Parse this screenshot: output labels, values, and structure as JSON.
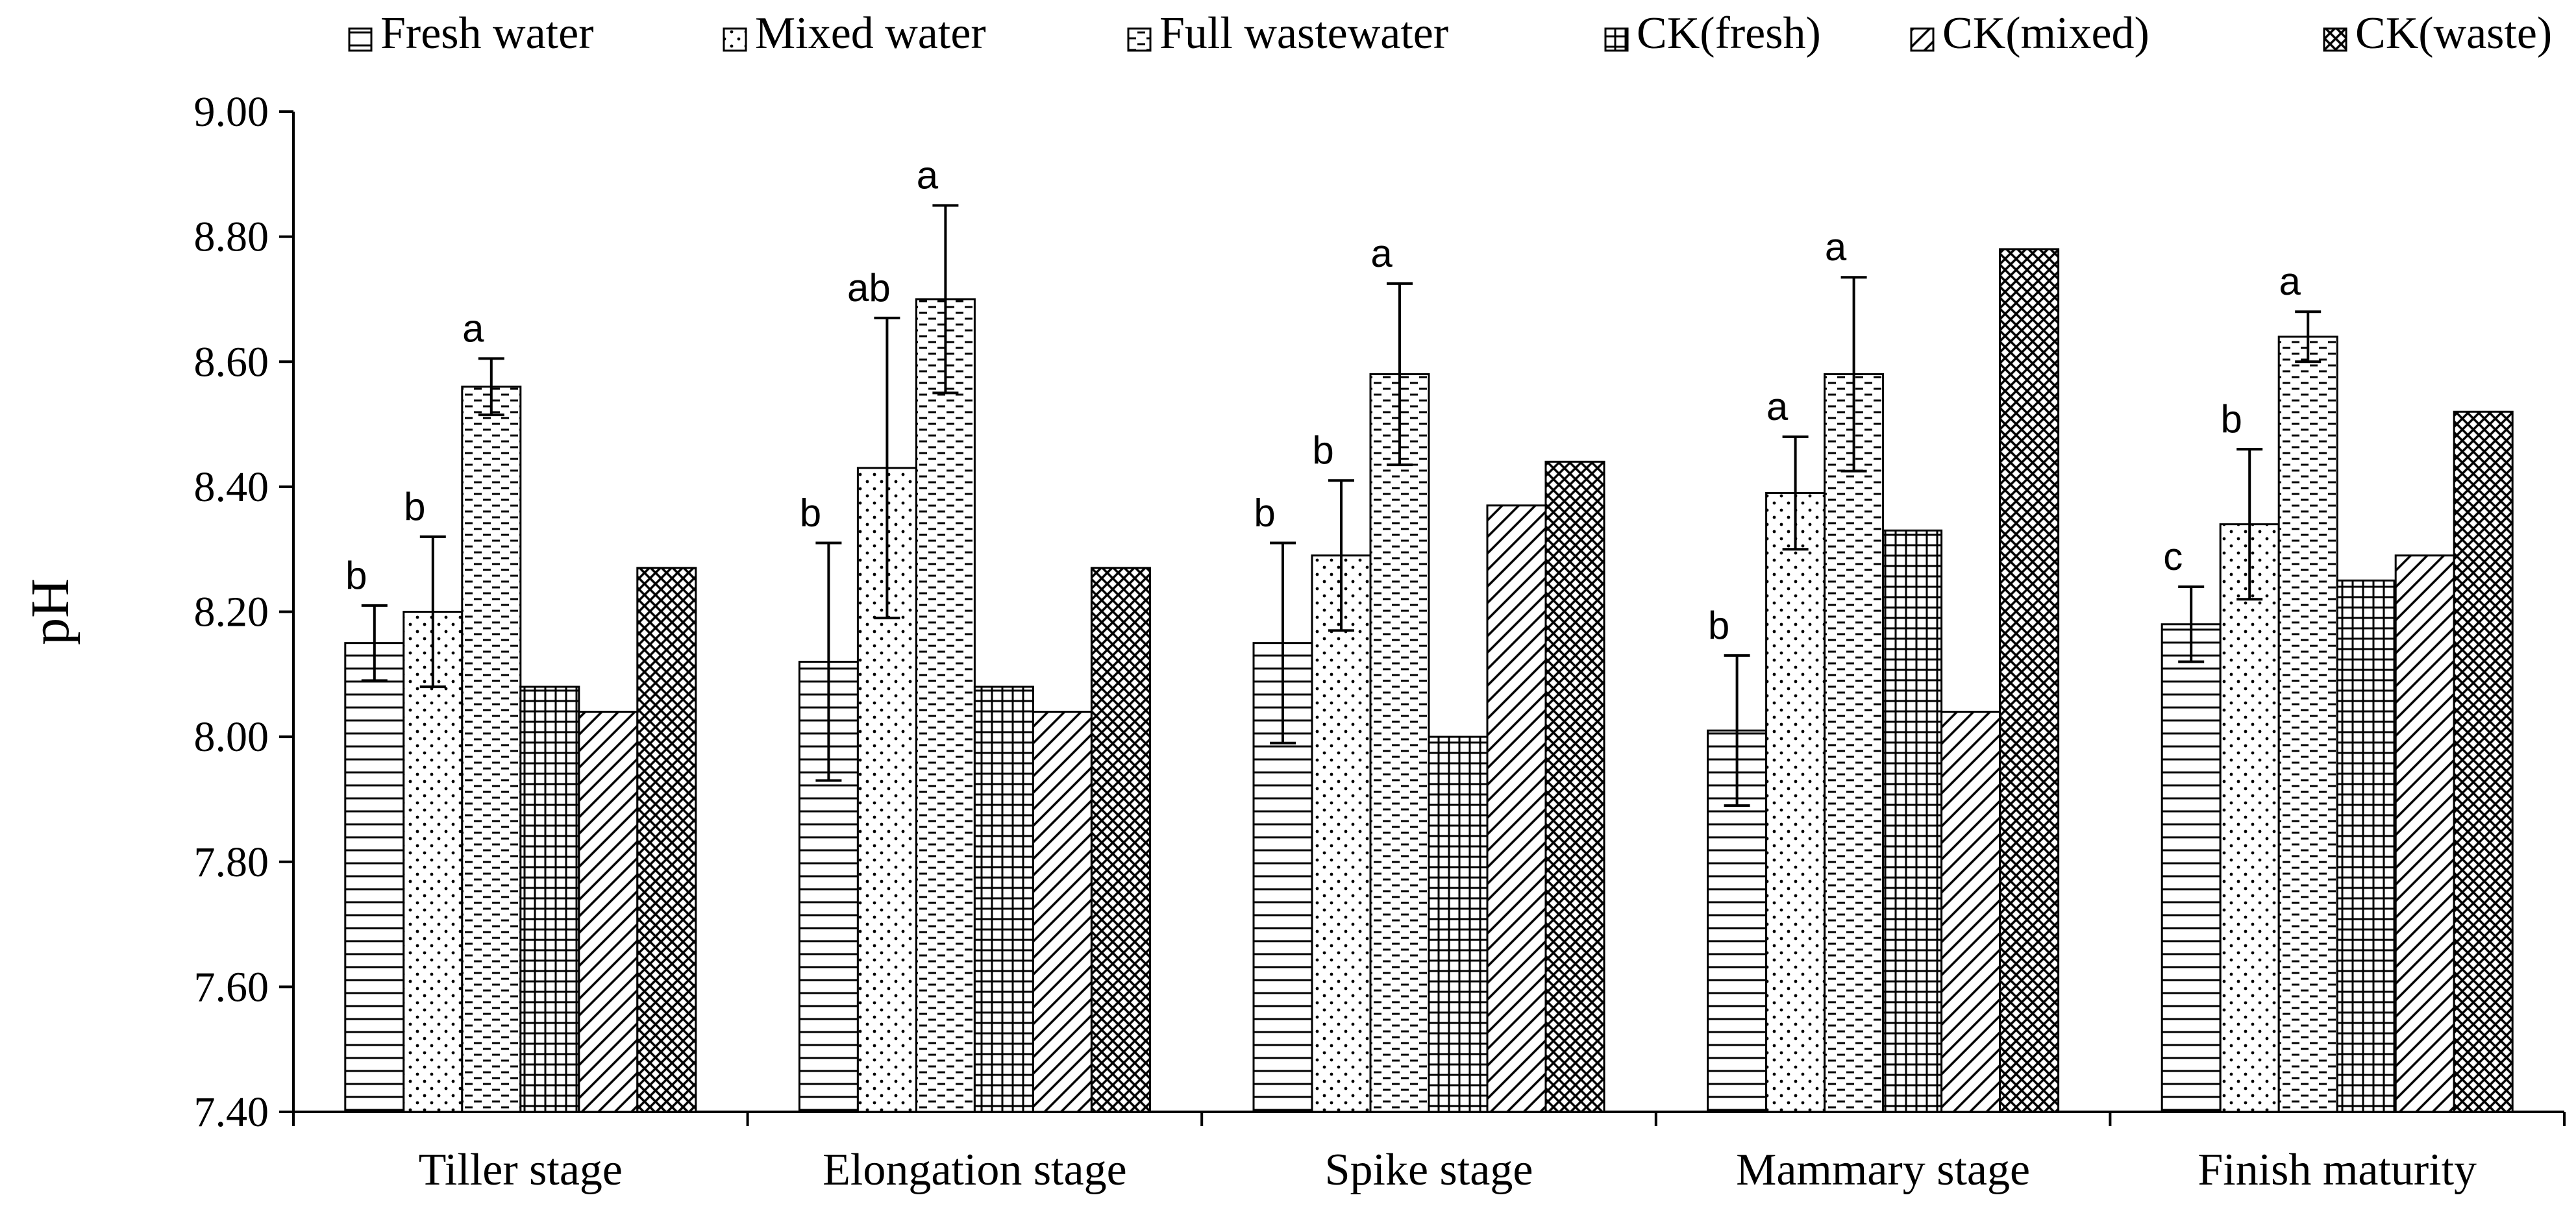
{
  "chart_data": {
    "type": "bar",
    "title": "",
    "xlabel": "",
    "ylabel": "pH",
    "ylim": [
      7.4,
      9.0
    ],
    "yticks": [
      "7.40",
      "7.60",
      "7.80",
      "8.00",
      "8.20",
      "8.40",
      "8.60",
      "8.80",
      "9.00"
    ],
    "categories": [
      "Tiller stage",
      "Elongation stage",
      "Spike stage",
      "Mammary stage",
      "Finish maturity"
    ],
    "legend_position": "top",
    "grid": false,
    "series": [
      {
        "name": "Fresh water",
        "pattern": "horizontal-lines",
        "values": [
          8.15,
          8.12,
          8.15,
          8.01,
          8.18
        ],
        "errors": [
          0.06,
          0.19,
          0.16,
          0.12,
          0.06
        ],
        "labels": [
          "b",
          "b",
          "b",
          "b",
          "c"
        ]
      },
      {
        "name": "Mixed water",
        "pattern": "dots",
        "values": [
          8.2,
          8.43,
          8.29,
          8.39,
          8.34
        ],
        "errors": [
          0.12,
          0.24,
          0.12,
          0.09,
          0.12
        ],
        "labels": [
          "b",
          "ab",
          "b",
          "a",
          "b"
        ]
      },
      {
        "name": "Full wastewater",
        "pattern": "dashes",
        "values": [
          8.56,
          8.7,
          8.58,
          8.58,
          8.64
        ],
        "errors": [
          0.045,
          0.15,
          0.145,
          0.155,
          0.04
        ],
        "labels": [
          "a",
          "a",
          "a",
          "a",
          "a"
        ]
      },
      {
        "name": "CK(fresh)",
        "pattern": "grid",
        "values": [
          8.08,
          8.08,
          8.0,
          8.33,
          8.25
        ],
        "errors": null,
        "labels": null
      },
      {
        "name": "CK(mixed)",
        "pattern": "diagonal",
        "values": [
          8.04,
          8.04,
          8.37,
          8.04,
          8.29
        ],
        "errors": null,
        "labels": null
      },
      {
        "name": "CK(waste)",
        "pattern": "crosshatch",
        "values": [
          8.27,
          8.27,
          8.44,
          8.78,
          8.52
        ],
        "errors": null,
        "labels": null
      }
    ]
  }
}
